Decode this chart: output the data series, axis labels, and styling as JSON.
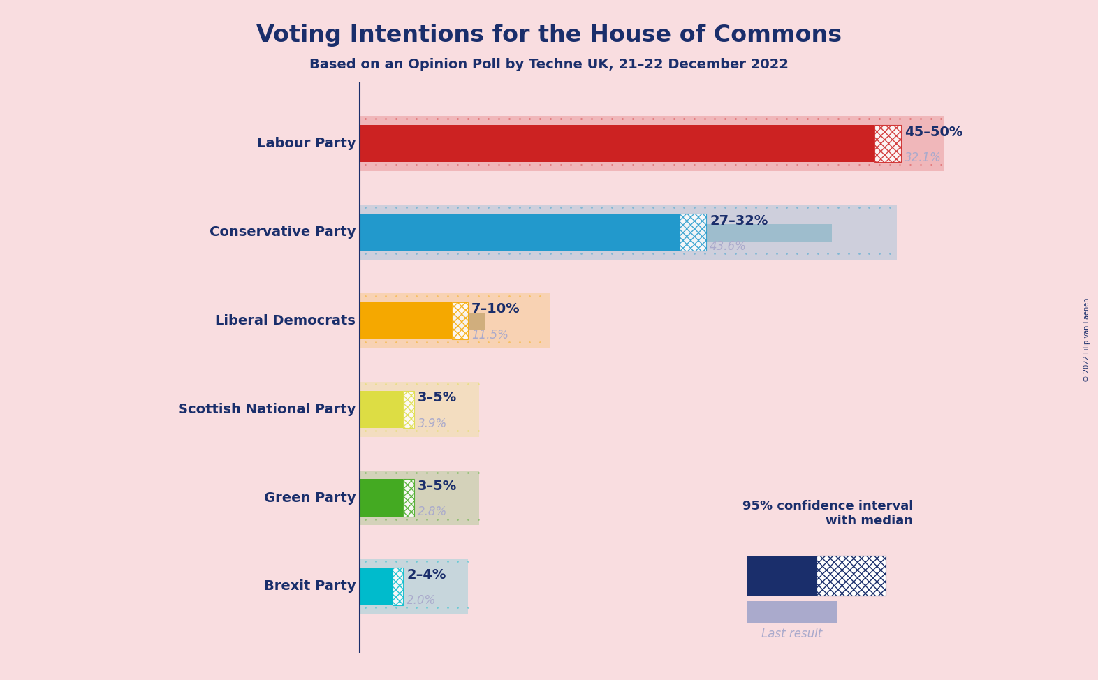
{
  "title": "Voting Intentions for the House of Commons",
  "subtitle": "Based on an Opinion Poll by Techne UK, 21–22 December 2022",
  "copyright": "© 2022 Filip van Laenen",
  "background_color": "#f9dde0",
  "title_color": "#1a2e6b",
  "parties": [
    {
      "name": "Labour Party",
      "ci_low": 45,
      "ci_high": 50,
      "median": 47.5,
      "last_result": 32.1,
      "bar_color": "#cc2222",
      "last_color": "#d4a0a0",
      "label": "45–50%",
      "last_label": "32.1%"
    },
    {
      "name": "Conservative Party",
      "ci_low": 27,
      "ci_high": 32,
      "median": 29.5,
      "last_result": 43.6,
      "bar_color": "#2299cc",
      "last_color": "#99bbcc",
      "label": "27–32%",
      "last_label": "43.6%"
    },
    {
      "name": "Liberal Democrats",
      "ci_low": 7,
      "ci_high": 10,
      "median": 8.5,
      "last_result": 11.5,
      "bar_color": "#f5a800",
      "last_color": "#ccaa77",
      "label": "7–10%",
      "last_label": "11.5%"
    },
    {
      "name": "Scottish National Party",
      "ci_low": 3,
      "ci_high": 5,
      "median": 4,
      "last_result": 3.9,
      "bar_color": "#dddd44",
      "last_color": "#cccc88",
      "label": "3–5%",
      "last_label": "3.9%"
    },
    {
      "name": "Green Party",
      "ci_low": 3,
      "ci_high": 5,
      "median": 4,
      "last_result": 2.8,
      "bar_color": "#44aa22",
      "last_color": "#88aa77",
      "label": "3–5%",
      "last_label": "2.8%"
    },
    {
      "name": "Brexit Party",
      "ci_low": 2,
      "ci_high": 4,
      "median": 3,
      "last_result": 2.0,
      "bar_color": "#00bbcc",
      "last_color": "#88aaaa",
      "label": "2–4%",
      "last_label": "2.0%"
    }
  ],
  "x_max": 54,
  "dot_region_extra": 6
}
